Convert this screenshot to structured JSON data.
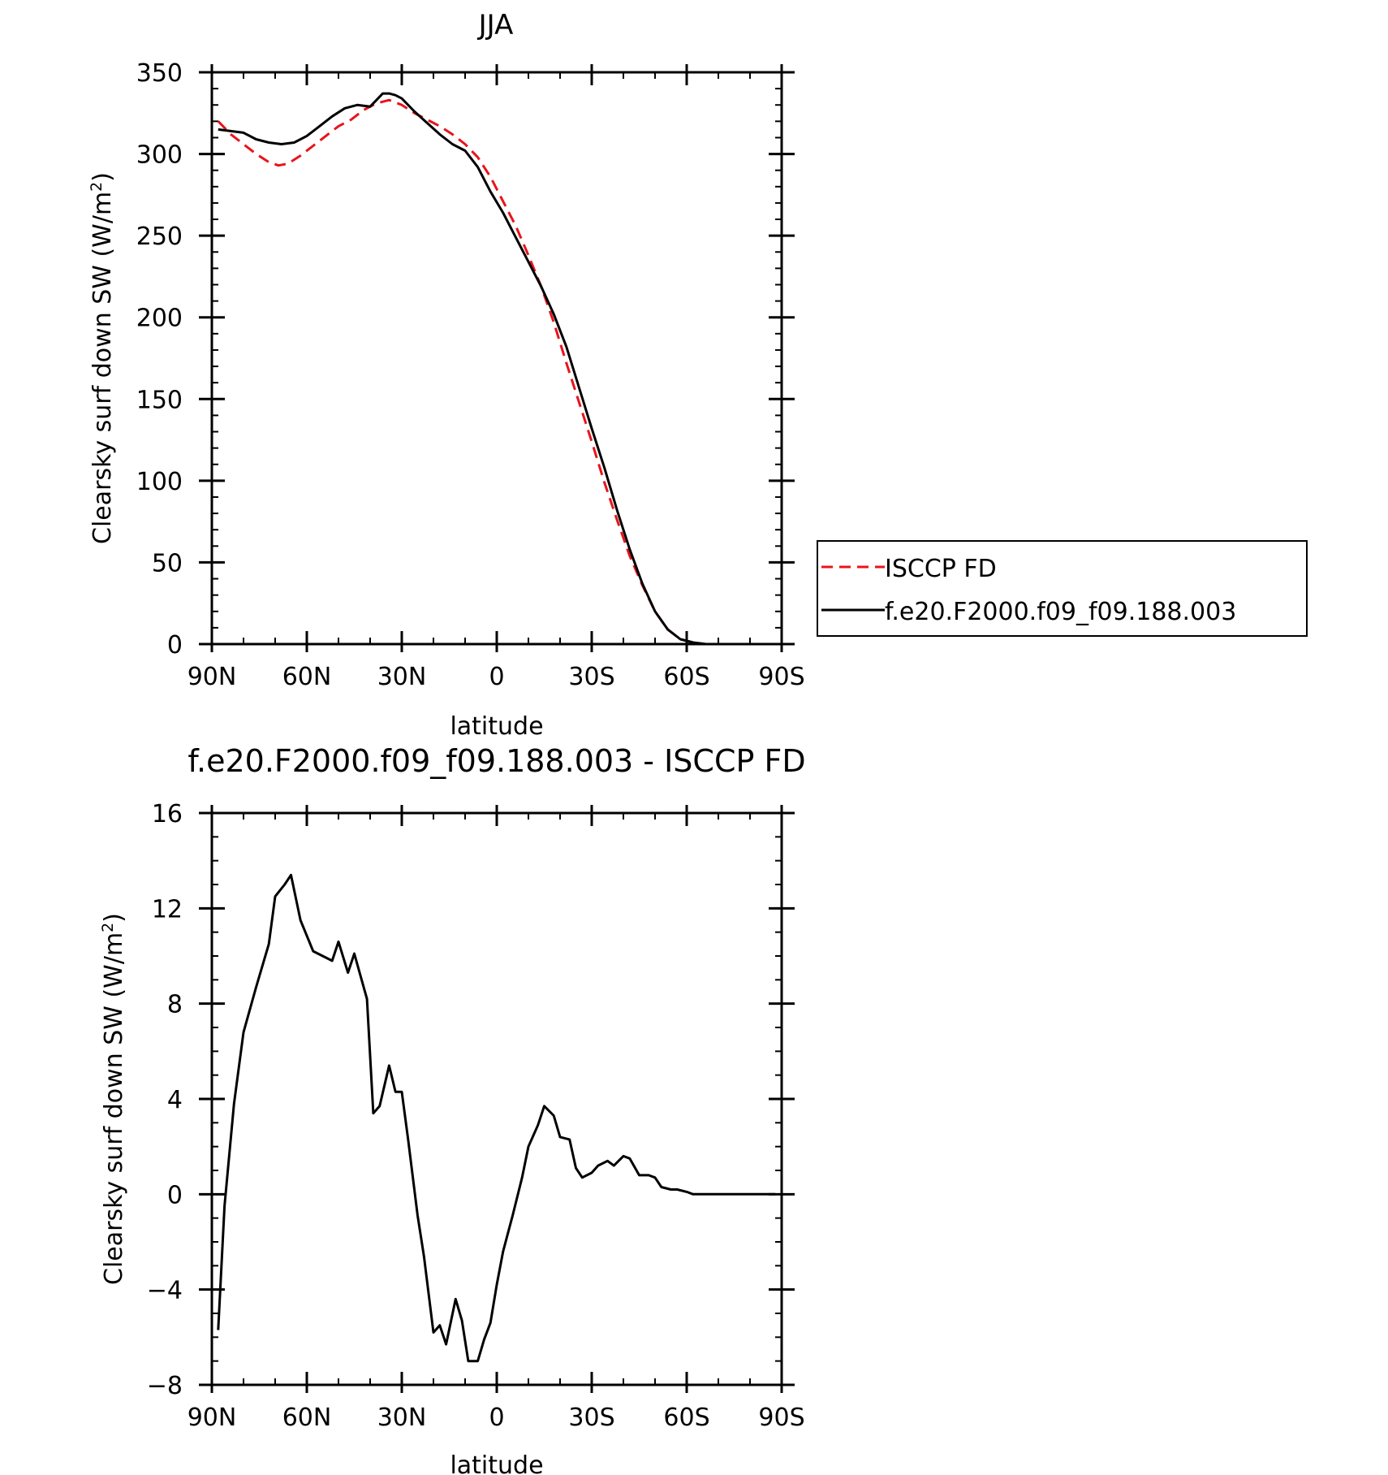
{
  "chart_data": [
    {
      "type": "line",
      "title": "JJA",
      "xlabel": "latitude",
      "ylabel": "Clearsky surf down SW (W/m",
      "ylabel_sup": "2",
      "ylabel_close": ")",
      "xlim": [
        90,
        -90
      ],
      "ylim": [
        0,
        350
      ],
      "xticks": [
        {
          "value": 90,
          "label": "90N"
        },
        {
          "value": 60,
          "label": "60N"
        },
        {
          "value": 30,
          "label": "30N"
        },
        {
          "value": 0,
          "label": "0"
        },
        {
          "value": -30,
          "label": "30S"
        },
        {
          "value": -60,
          "label": "60S"
        },
        {
          "value": -90,
          "label": "90S"
        }
      ],
      "yticks": [
        {
          "value": 0,
          "label": "0"
        },
        {
          "value": 50,
          "label": "50"
        },
        {
          "value": 100,
          "label": "100"
        },
        {
          "value": 150,
          "label": "150"
        },
        {
          "value": 200,
          "label": "200"
        },
        {
          "value": 250,
          "label": "250"
        },
        {
          "value": 300,
          "label": "300"
        },
        {
          "value": 350,
          "label": "350"
        }
      ],
      "legend_position": "right",
      "series": [
        {
          "name": "ISCCP FD",
          "color": "#e8141c",
          "dash": "dashed",
          "x": [
            88,
            84,
            80,
            76,
            72,
            69,
            66,
            62,
            58,
            54,
            50,
            46,
            42,
            38,
            34,
            30,
            26,
            22,
            18,
            14,
            10,
            6,
            2,
            -2,
            -6,
            -10,
            -14,
            -18,
            -22,
            -26,
            -30,
            -34,
            -38,
            -42,
            -46,
            -50,
            -54,
            -58,
            -62,
            -66,
            -70,
            -74,
            -78,
            -82,
            -86
          ],
          "y": [
            320,
            312,
            306,
            300,
            295,
            293,
            294,
            299,
            305,
            311,
            317,
            321,
            327,
            331,
            333,
            330,
            325,
            321,
            317,
            312,
            306,
            298,
            286,
            271,
            256,
            238,
            219,
            197,
            172,
            148,
            124,
            99,
            76,
            54,
            36,
            20,
            9,
            3,
            1,
            0,
            0,
            0,
            0,
            0,
            0
          ]
        },
        {
          "name": "f.e20.F2000.f09_f09.188.003",
          "color": "#000000",
          "dash": "solid",
          "x": [
            88,
            84,
            80,
            76,
            72,
            68,
            64,
            60,
            56,
            52,
            48,
            44,
            40,
            38,
            36,
            34,
            32,
            30,
            26,
            22,
            18,
            14,
            10,
            6,
            2,
            -2,
            -6,
            -10,
            -14,
            -18,
            -22,
            -26,
            -30,
            -34,
            -38,
            -42,
            -46,
            -50,
            -54,
            -58,
            -62,
            -66,
            -70,
            -74,
            -78,
            -82,
            -86
          ],
          "y": [
            315,
            314,
            313,
            309,
            307,
            306,
            307,
            311,
            317,
            323,
            328,
            330,
            329,
            333,
            337,
            337,
            336,
            334,
            326,
            319,
            312,
            306,
            302,
            292,
            277,
            264,
            249,
            234,
            219,
            202,
            182,
            157,
            132,
            108,
            82,
            58,
            37,
            20,
            9,
            3,
            1,
            0,
            0,
            0,
            0,
            0,
            0
          ]
        }
      ]
    },
    {
      "type": "line",
      "title": "f.e20.F2000.f09_f09.188.003 - ISCCP FD",
      "xlabel": "latitude",
      "ylabel": "Clearsky surf down SW (W/m",
      "ylabel_sup": "2",
      "ylabel_close": ")",
      "xlim": [
        90,
        -90
      ],
      "ylim": [
        -8,
        16
      ],
      "xticks": [
        {
          "value": 90,
          "label": "90N"
        },
        {
          "value": 60,
          "label": "60N"
        },
        {
          "value": 30,
          "label": "30N"
        },
        {
          "value": 0,
          "label": "0"
        },
        {
          "value": -30,
          "label": "30S"
        },
        {
          "value": -60,
          "label": "60S"
        },
        {
          "value": -90,
          "label": "90S"
        }
      ],
      "yticks": [
        {
          "value": -8,
          "label": "-8"
        },
        {
          "value": -4,
          "label": "-4"
        },
        {
          "value": 0,
          "label": "0"
        },
        {
          "value": 4,
          "label": "4"
        },
        {
          "value": 8,
          "label": "8"
        },
        {
          "value": 12,
          "label": "12"
        },
        {
          "value": 16,
          "label": "16"
        }
      ],
      "series": [
        {
          "name": "",
          "color": "#000000",
          "dash": "solid",
          "x": [
            88,
            86,
            83,
            80,
            76,
            72,
            70,
            67,
            65,
            62,
            58,
            55,
            52,
            50,
            47,
            45,
            41,
            39,
            37,
            34,
            32,
            30,
            28,
            25,
            23,
            20,
            18,
            16,
            13,
            11,
            9,
            6,
            4,
            2,
            0,
            -2,
            -5,
            -8,
            -10,
            -13,
            -15,
            -18,
            -20,
            -23,
            -25,
            -27,
            -30,
            -32,
            -35,
            -37,
            -40,
            -42,
            -45,
            -48,
            -50,
            -52,
            -55,
            -57,
            -60,
            -62,
            -65,
            -68,
            -70,
            -73,
            -75,
            -78,
            -82,
            -85,
            -88
          ],
          "y": [
            -5.7,
            -0.5,
            3.8,
            6.8,
            8.7,
            10.5,
            12.5,
            13.0,
            13.4,
            11.5,
            10.2,
            10.0,
            9.8,
            10.6,
            9.3,
            10.1,
            8.2,
            3.4,
            3.7,
            5.4,
            4.3,
            4.3,
            2.3,
            -0.9,
            -2.6,
            -5.8,
            -5.5,
            -6.3,
            -4.4,
            -5.3,
            -7.0,
            -7.0,
            -6.1,
            -5.4,
            -3.8,
            -2.4,
            -0.9,
            0.7,
            2.0,
            2.9,
            3.7,
            3.3,
            2.4,
            2.3,
            1.1,
            0.7,
            0.9,
            1.2,
            1.4,
            1.2,
            1.6,
            1.5,
            0.8,
            0.8,
            0.7,
            0.3,
            0.2,
            0.2,
            0.1,
            0.0,
            0.0,
            0.0,
            0.0,
            0.0,
            0.0,
            0.0,
            0.0,
            0.0,
            0.0
          ]
        }
      ]
    }
  ]
}
